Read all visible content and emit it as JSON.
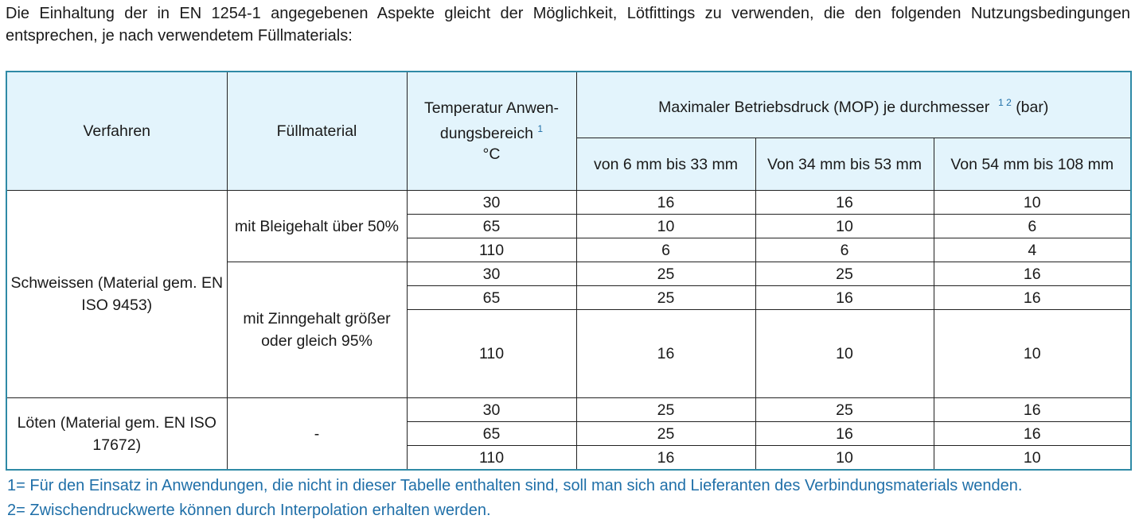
{
  "intro": "Die Einhaltung der in EN 1254-1 angegebenen Aspekte gleicht der Möglichkeit, Lötfittings zu verwenden, die den folgenden Nutzungsbedingungen entsprechen, je nach verwendetem Füllmaterials:",
  "colors": {
    "header_bg": "#e3f4fc",
    "border": "#2f8aa6",
    "footnote": "#1f6fa8"
  },
  "table": {
    "headers": {
      "verfahren": "Verfahren",
      "fuellmaterial": "Füllmaterial",
      "temperatur": "Temperatur Anwen-dungsbereich",
      "temperatur_sup": "1",
      "temperatur_unit": "°C",
      "mop": "Maximaler Betriebsdruck (MOP) je durchmesser",
      "mop_sup": "1 2",
      "mop_unit": "(bar)",
      "diameters": [
        "von 6 mm bis 33 mm",
        "Von 34 mm bis 53 mm",
        "Von 54 mm bis 108 mm"
      ]
    },
    "groups": [
      {
        "verfahren": "Schweissen (Material gem. EN ISO 9453)",
        "materials": [
          {
            "name": "mit Bleigehalt über 50%",
            "rows": [
              [
                "30",
                "16",
                "16",
                "10"
              ],
              [
                "65",
                "10",
                "10",
                "6"
              ],
              [
                "110",
                "6",
                "6",
                "4"
              ]
            ]
          },
          {
            "name": "mit Zinngehalt größer oder gleich 95%",
            "rows": [
              [
                "30",
                "25",
                "25",
                "16"
              ],
              [
                "65",
                "25",
                "16",
                "16"
              ],
              [
                "110",
                "16",
                "10",
                "10"
              ]
            ]
          }
        ]
      },
      {
        "verfahren": "Löten (Material gem. EN ISO 17672)",
        "materials": [
          {
            "name": "-",
            "rows": [
              [
                "30",
                "25",
                "25",
                "16"
              ],
              [
                "65",
                "25",
                "16",
                "16"
              ],
              [
                "110",
                "16",
                "10",
                "10"
              ]
            ]
          }
        ]
      }
    ]
  },
  "footnotes": [
    "1= Für den Einsatz in Anwendungen, die nicht in dieser Tabelle enthalten sind, soll man sich and Lieferanten des Verbindungsmaterials wenden.",
    "2= Zwischendruckwerte können durch Interpolation erhalten werden."
  ]
}
